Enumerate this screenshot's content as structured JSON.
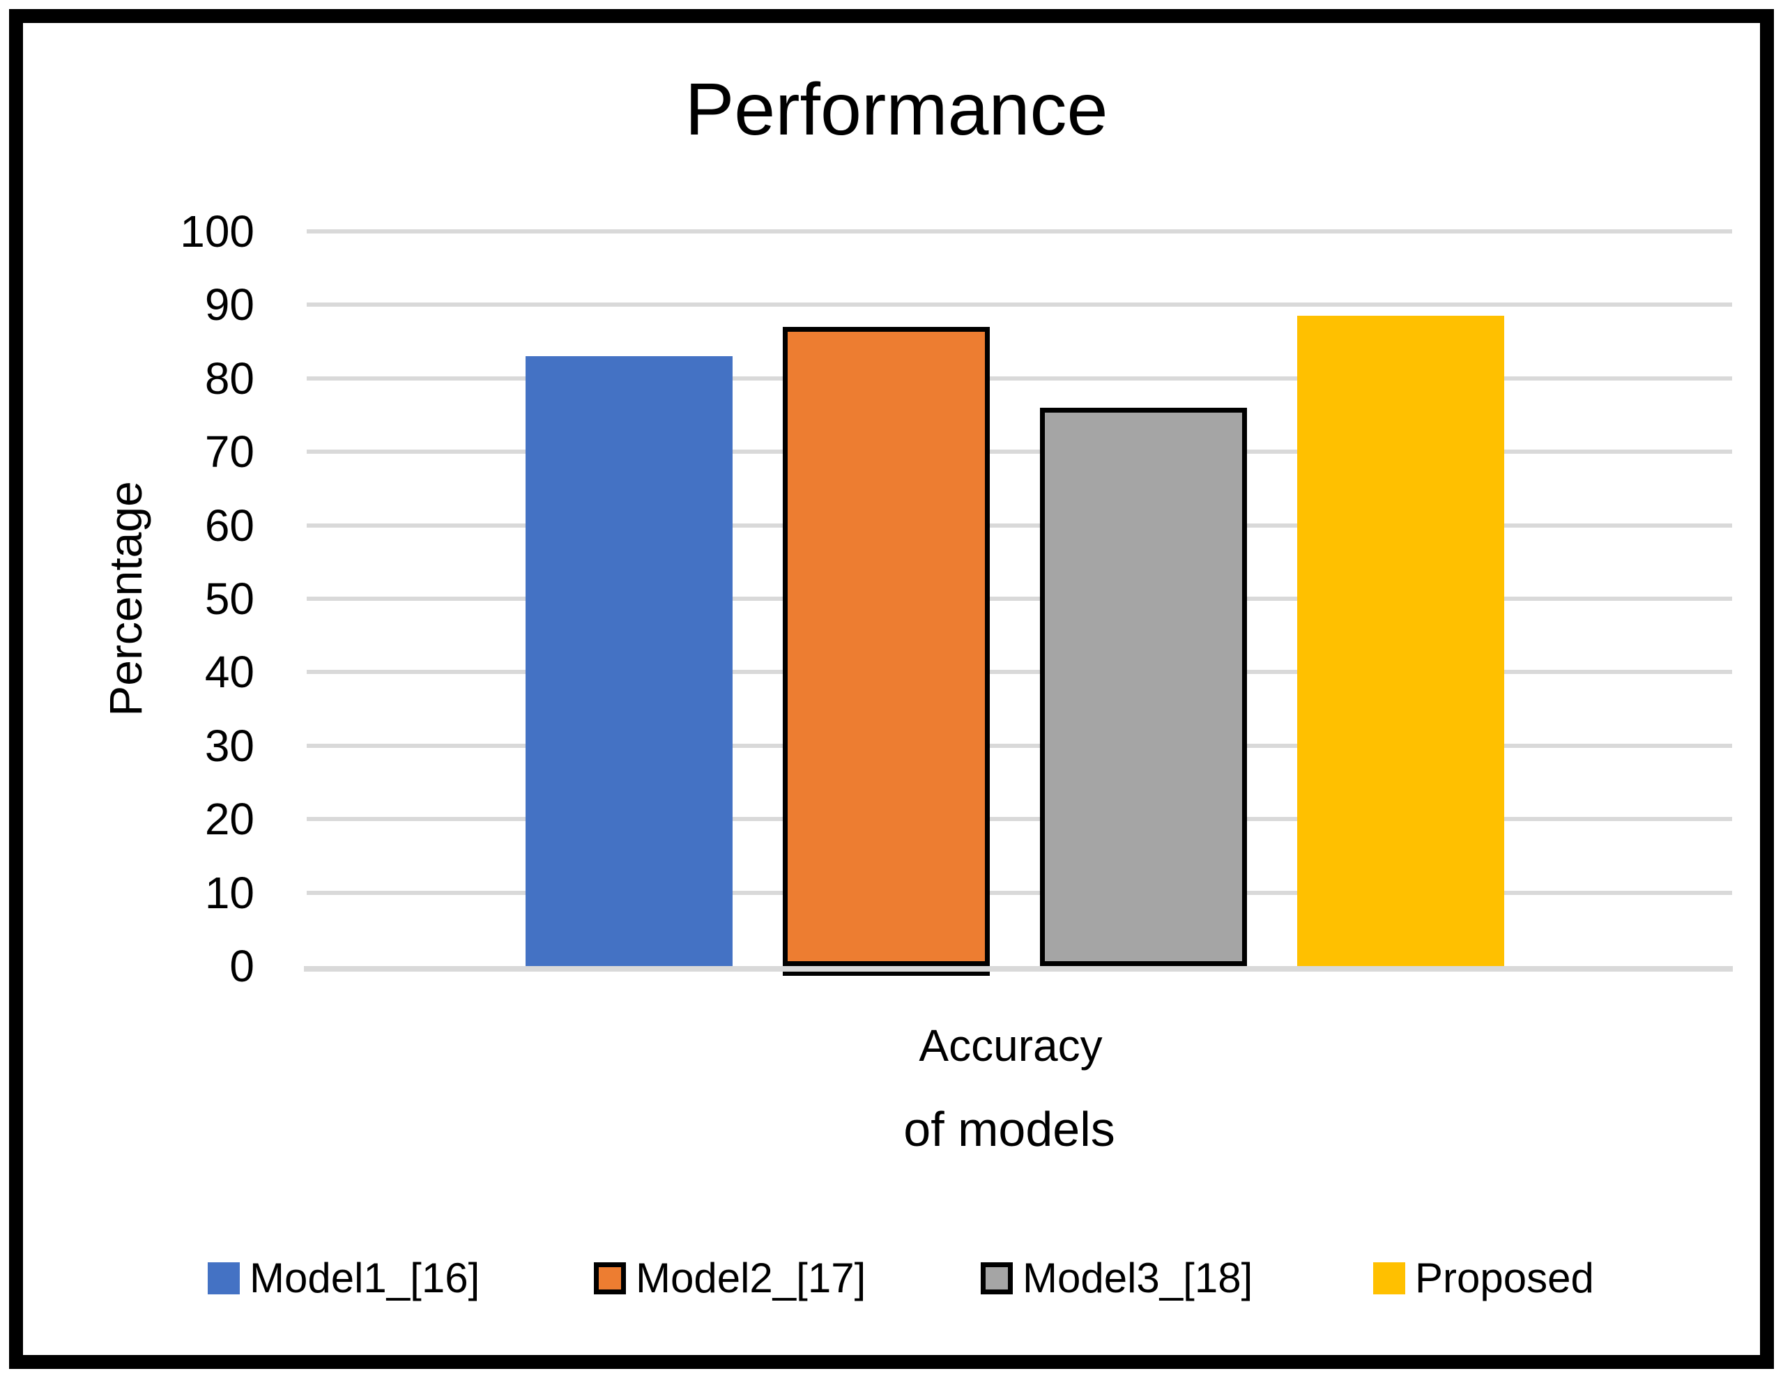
{
  "page": {
    "background_color": "#FFFFFF",
    "frame_border_color": "#000000"
  },
  "chart_data": {
    "type": "bar",
    "title": "Performance",
    "ylabel": "Percentage",
    "xlabel": "of models",
    "categories": [
      "Accuracy"
    ],
    "series": [
      {
        "name": "Model1_[16]",
        "values": [
          83
        ],
        "color": "#4472C4",
        "outlined": false
      },
      {
        "name": "Model2_[17]",
        "values": [
          87
        ],
        "color": "#ED7D31",
        "outlined": true
      },
      {
        "name": "Model3_[18]",
        "values": [
          76
        ],
        "color": "#A5A5A5",
        "outlined": true
      },
      {
        "name": "Proposed",
        "values": [
          88.5
        ],
        "color": "#FFC000",
        "outlined": false
      }
    ],
    "ylim": [
      0,
      100
    ],
    "ytick_step": 10,
    "yticks": [
      0,
      10,
      20,
      30,
      40,
      50,
      60,
      70,
      80,
      90,
      100
    ],
    "grid": true,
    "gridline_color": "#D9D9D9",
    "axis_line_color": "#D9D9D9",
    "outline_color": "#000000",
    "legend_position": "bottom"
  }
}
